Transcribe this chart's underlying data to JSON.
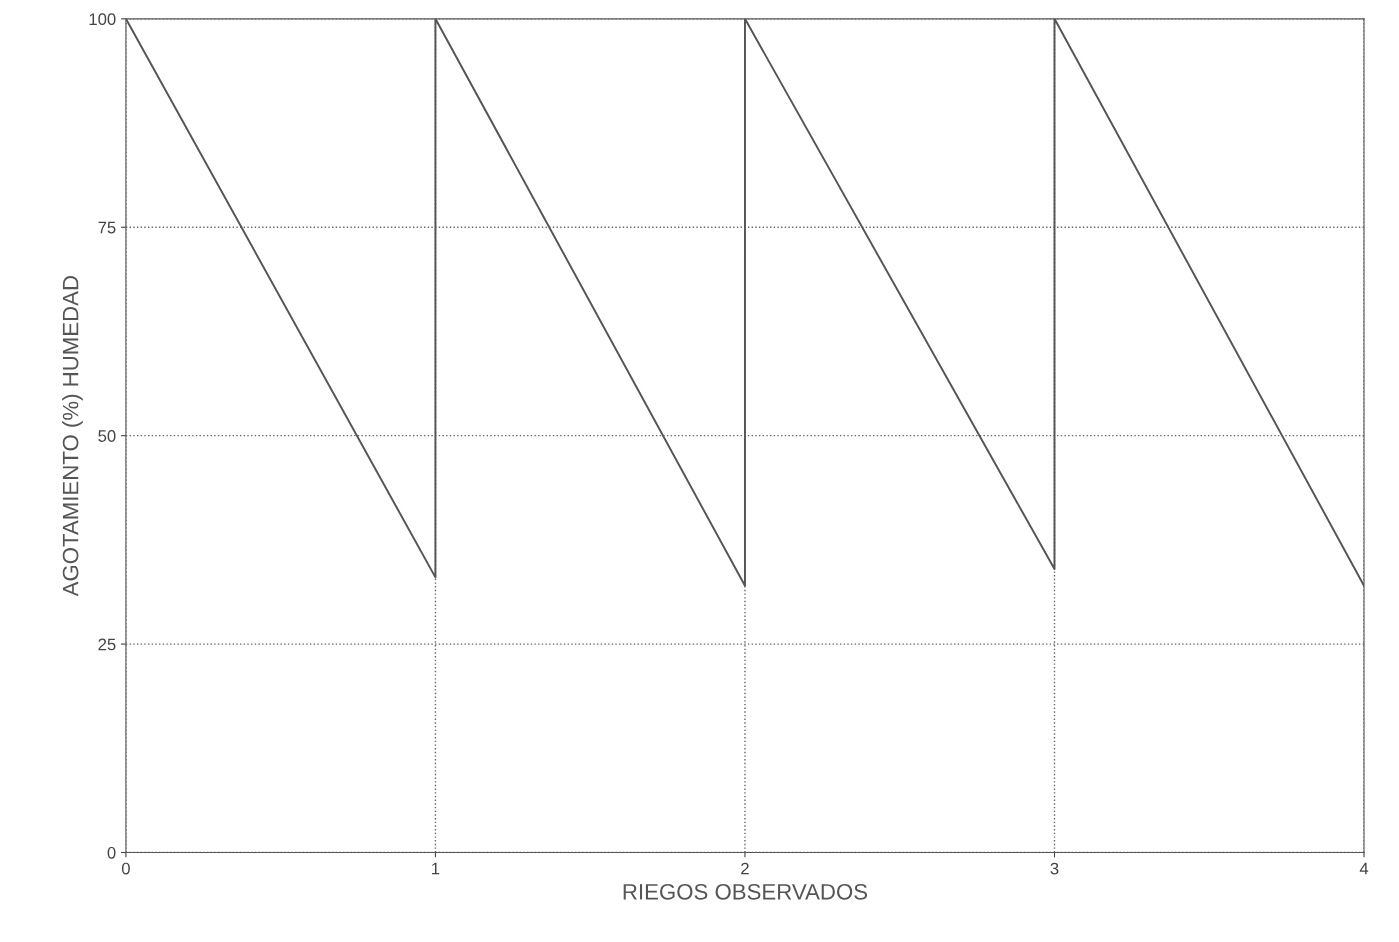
{
  "chart_data": {
    "type": "line",
    "xlabel": "RIEGOS OBSERVADOS",
    "ylabel": "AGOTAMIENTO (%) HUMEDAD",
    "series": [
      {
        "color": "#555555",
        "x": [
          0,
          1,
          1,
          2,
          2,
          3,
          3,
          4
        ],
        "values": [
          100,
          33,
          100,
          32,
          100,
          34,
          100,
          32
        ]
      }
    ],
    "xlim": [
      0,
      4
    ],
    "xticks": [
      0,
      1,
      2,
      3,
      4
    ],
    "ylim": [
      0,
      100
    ],
    "yticks": [
      0,
      25,
      50,
      75,
      100
    ],
    "grid": true,
    "line_style": "solid",
    "marker": "none",
    "legend": false
  }
}
